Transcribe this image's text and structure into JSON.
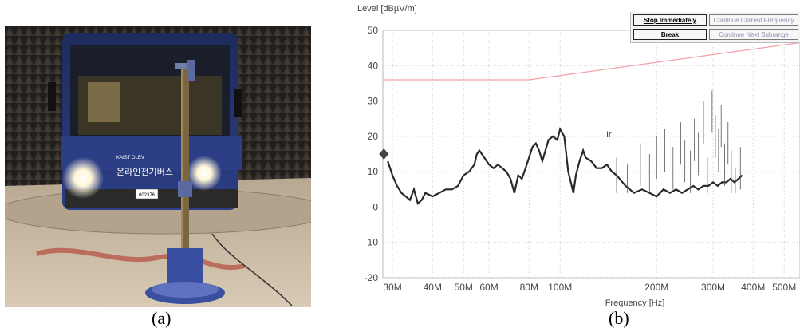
{
  "panels": {
    "a": {
      "caption": "(a)"
    },
    "b": {
      "caption": "(b)"
    }
  },
  "photo": {
    "bus_text": "온라인전기버스",
    "bus_brand": "KAIST OLEV",
    "plate": "002376"
  },
  "analyzer": {
    "buttons": {
      "stop": "Stop Immediately",
      "continue_freq": "Continue Current Frequency",
      "break": "Break",
      "continue_sub": "Continue Next Subrange"
    },
    "marker_label": "Ir"
  },
  "chart_data": {
    "type": "line",
    "ylabel": "Level [dBµV/m]",
    "xlabel": "Frequency [Hz]",
    "x_scale": "log",
    "xlim_mhz": [
      28,
      560
    ],
    "ylim": [
      -20,
      50
    ],
    "y_ticks": [
      50,
      40,
      30,
      20,
      10,
      0,
      -10,
      -20
    ],
    "x_ticks": [
      {
        "mhz": 30,
        "label": "30M"
      },
      {
        "mhz": 40,
        "label": "40M"
      },
      {
        "mhz": 50,
        "label": "50M"
      },
      {
        "mhz": 60,
        "label": "60M"
      },
      {
        "mhz": 80,
        "label": "80M"
      },
      {
        "mhz": 100,
        "label": "100M"
      },
      {
        "mhz": 200,
        "label": "200M"
      },
      {
        "mhz": 300,
        "label": "300M"
      },
      {
        "mhz": 400,
        "label": "400M"
      },
      {
        "mhz": 500,
        "label": "500M"
      }
    ],
    "grid": true,
    "series": [
      {
        "color": "#f2a0a8",
        "x_mhz": [
          28,
          80,
          560
        ],
        "values": [
          36,
          36,
          46.5
        ]
      },
      {
        "color": "#2a2a2a",
        "x_mhz": [
          29,
          29.5,
          30,
          31,
          32,
          33,
          34,
          35,
          36,
          37,
          38,
          40,
          42,
          44,
          46,
          48,
          50,
          52,
          54,
          55,
          56,
          58,
          60,
          62,
          64,
          66,
          68,
          70,
          72,
          74,
          76,
          78,
          80,
          82,
          84,
          86,
          88,
          90,
          92,
          95,
          98,
          100,
          103,
          106,
          108,
          110,
          112,
          115,
          118,
          120,
          125,
          130,
          135,
          140,
          145,
          150,
          160,
          170,
          180,
          190,
          200,
          210,
          220,
          230,
          240,
          250,
          260,
          270,
          280,
          290,
          300,
          310,
          320,
          330,
          340,
          350,
          360,
          370
        ],
        "values": [
          13,
          11,
          9,
          6,
          4,
          3,
          2,
          5,
          1,
          2,
          4,
          3,
          4,
          5,
          5,
          6,
          9,
          10,
          12,
          15,
          16,
          14,
          12,
          11,
          12,
          11,
          10,
          8,
          4,
          9,
          8,
          11,
          14,
          17,
          18,
          16,
          13,
          16,
          19,
          20,
          19,
          22,
          20,
          10,
          7,
          4,
          9,
          13,
          16,
          14,
          13,
          11,
          11,
          12,
          10,
          9,
          6,
          4,
          5,
          4,
          3,
          5,
          4,
          5,
          4,
          5,
          6,
          5,
          6,
          6,
          7,
          6,
          7,
          7,
          8,
          7,
          8,
          9
        ]
      }
    ],
    "spikes": {
      "color": "#555555",
      "x_mhz": [
        113,
        150,
        162,
        178,
        190,
        200,
        212,
        225,
        238,
        245,
        255,
        262,
        270,
        280,
        288,
        298,
        305,
        312,
        318,
        326,
        334,
        342,
        352,
        365
      ],
      "values": [
        17,
        14,
        12,
        18,
        15,
        20,
        22,
        17,
        24,
        19,
        16,
        25,
        21,
        30,
        14,
        33,
        26,
        22,
        29,
        18,
        24,
        16,
        11,
        17
      ]
    },
    "marker": {
      "x_mhz": 28.2,
      "value": 15,
      "color": "#444444"
    }
  }
}
